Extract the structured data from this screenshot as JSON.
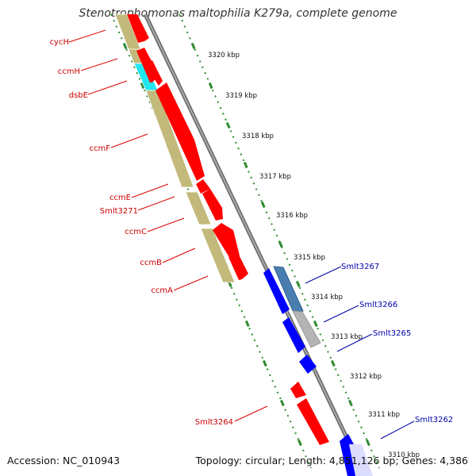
{
  "title": "Stenotrophomonas maltophilia K279a, complete genome",
  "footer": {
    "accession": "Accession: NC_010943",
    "topology": "Topology: circular; Length: 4,851,126 bp; Genes: 4,386"
  },
  "colors": {
    "forward_gene": "#ff0000",
    "reverse_gene": "#0000ff",
    "cds_olive": "#c2b97a",
    "cds_cyan": "#22e6f0",
    "cds_steel": "#4a7db0",
    "cds_grey": "#b4b4b4",
    "backbone": "#888888",
    "tick": "#2e8b2e",
    "label_red": "#cc0000",
    "label_blue": "#0000aa"
  },
  "kbp_labels": [
    "3320 kbp",
    "3319 kbp",
    "3318 kbp",
    "3317 kbp",
    "3316 kbp",
    "3315 kbp",
    "3314 kbp",
    "3313 kbp",
    "3312 kbp",
    "3311 kbp",
    "3310 kbp"
  ],
  "forward_genes": [
    "cycH",
    "ccmH",
    "dsbE",
    "ccmF",
    "ccmE",
    "Smlt3271",
    "ccmC",
    "ccmB",
    "ccmA",
    "Smlt3264"
  ],
  "reverse_genes": [
    "Smlt3267",
    "Smlt3266",
    "Smlt3265",
    "Smlt3262"
  ]
}
